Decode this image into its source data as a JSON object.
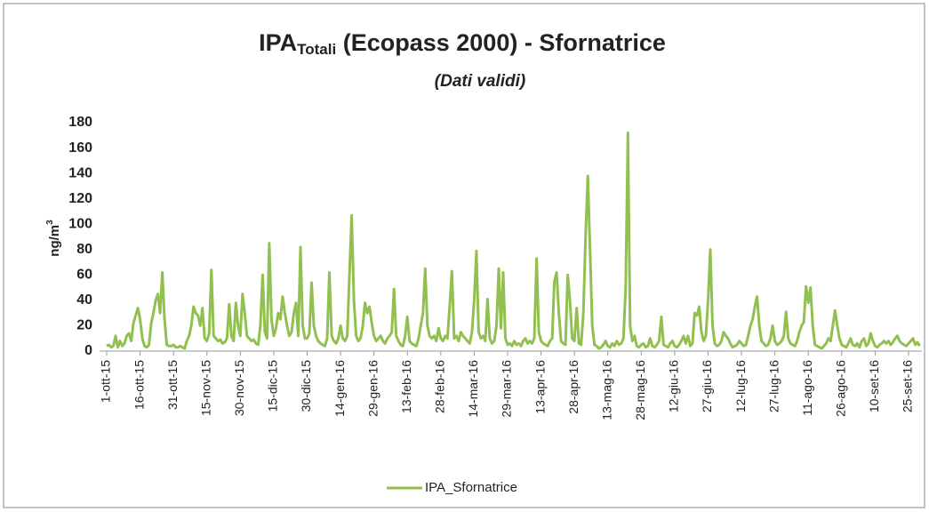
{
  "chart_data": {
    "type": "line",
    "title": "IPA",
    "title_sub": "Totali",
    "title_rest": " (Ecopass 2000) - Sfornatrice",
    "subtitle": "(Dati validi)",
    "y_label": "ng/m",
    "y_label_sup": "3",
    "ylim": [
      0,
      180
    ],
    "yticks": [
      0,
      20,
      40,
      60,
      80,
      100,
      120,
      140,
      160,
      180
    ],
    "grid": false,
    "legend": "bottom",
    "categories": [
      "1-ott-15",
      null,
      null,
      null,
      null,
      null,
      null,
      null,
      null,
      null,
      null,
      null,
      null,
      null,
      null,
      "16-ott-15",
      null,
      null,
      null,
      null,
      null,
      null,
      null,
      null,
      null,
      null,
      null,
      null,
      null,
      null,
      "31-ott-15",
      null,
      null,
      null,
      null,
      null,
      null,
      null,
      null,
      null,
      null,
      null,
      null,
      null,
      null,
      "15-nov-15",
      null,
      null,
      null,
      null,
      null,
      null,
      null,
      null,
      null,
      null,
      null,
      null,
      null,
      null,
      "30-nov-15",
      null,
      null,
      null,
      null,
      null,
      null,
      null,
      null,
      null,
      null,
      null,
      null,
      null,
      null,
      "15-dic-15",
      null,
      null,
      null,
      null,
      null,
      null,
      null,
      null,
      null,
      null,
      null,
      null,
      null,
      null,
      "30-dic-15",
      null,
      null,
      null,
      null,
      null,
      null,
      null,
      null,
      null,
      null,
      null,
      null,
      null,
      null,
      "14-gen-16",
      null,
      null,
      null,
      null,
      null,
      null,
      null,
      null,
      null,
      null,
      null,
      null,
      null,
      null,
      "29-gen-16",
      null,
      null,
      null,
      null,
      null,
      null,
      null,
      null,
      null,
      null,
      null,
      null,
      null,
      null,
      "13-feb-16",
      null,
      null,
      null,
      null,
      null,
      null,
      null,
      null,
      null,
      null,
      null,
      null,
      null,
      null,
      "28-feb-16",
      null,
      null,
      null,
      null,
      null,
      null,
      null,
      null,
      null,
      null,
      null,
      null,
      null,
      null,
      "14-mar-16",
      null,
      null,
      null,
      null,
      null,
      null,
      null,
      null,
      null,
      null,
      null,
      null,
      null,
      null,
      "29-mar-16",
      null,
      null,
      null,
      null,
      null,
      null,
      null,
      null,
      null,
      null,
      null,
      null,
      null,
      null,
      "13-apr-16",
      null,
      null,
      null,
      null,
      null,
      null,
      null,
      null,
      null,
      null,
      null,
      null,
      null,
      null,
      "28-apr-16",
      null,
      null,
      null,
      null,
      null,
      null,
      null,
      null,
      null,
      null,
      null,
      null,
      null,
      null,
      "13-mag-16",
      null,
      null,
      null,
      null,
      null,
      null,
      null,
      null,
      null,
      null,
      null,
      null,
      null,
      null,
      "28-mag-16",
      null,
      null,
      null,
      null,
      null,
      null,
      null,
      null,
      null,
      null,
      null,
      null,
      null,
      null,
      "12-giu-16",
      null,
      null,
      null,
      null,
      null,
      null,
      null,
      null,
      null,
      null,
      null,
      null,
      null,
      null,
      "27-giu-16",
      null,
      null,
      null,
      null,
      null,
      null,
      null,
      null,
      null,
      null,
      null,
      null,
      null,
      null,
      "12-lug-16",
      null,
      null,
      null,
      null,
      null,
      null,
      null,
      null,
      null,
      null,
      null,
      null,
      null,
      null,
      "27-lug-16",
      null,
      null,
      null,
      null,
      null,
      null,
      null,
      null,
      null,
      null,
      null,
      null,
      null,
      null,
      "11-ago-16",
      null,
      null,
      null,
      null,
      null,
      null,
      null,
      null,
      null,
      null,
      null,
      null,
      null,
      null,
      "26-ago-16",
      null,
      null,
      null,
      null,
      null,
      null,
      null,
      null,
      null,
      null,
      null,
      null,
      null,
      null,
      "10-set-16",
      null,
      null,
      null,
      null,
      null,
      null,
      null,
      null,
      null,
      null,
      null,
      null,
      null,
      null,
      "25-set-16",
      null,
      null,
      null,
      null,
      null
    ],
    "series": [
      {
        "name": "IPA_Sfornatrice",
        "color": "#92c050",
        "values": [
          4,
          5,
          3,
          4,
          12,
          3,
          8,
          4,
          6,
          12,
          14,
          8,
          22,
          28,
          34,
          25,
          10,
          4,
          3,
          5,
          22,
          30,
          40,
          45,
          30,
          62,
          25,
          5,
          4,
          4,
          5,
          3,
          3,
          4,
          3,
          2,
          8,
          12,
          20,
          35,
          30,
          28,
          20,
          34,
          10,
          8,
          14,
          64,
          12,
          10,
          8,
          9,
          6,
          7,
          10,
          37,
          12,
          8,
          38,
          20,
          12,
          45,
          30,
          12,
          10,
          8,
          9,
          6,
          5,
          20,
          60,
          15,
          10,
          85,
          25,
          12,
          18,
          30,
          25,
          43,
          30,
          20,
          12,
          15,
          30,
          38,
          12,
          82,
          20,
          10,
          10,
          14,
          54,
          20,
          12,
          8,
          6,
          5,
          4,
          10,
          62,
          12,
          8,
          6,
          10,
          20,
          10,
          8,
          12,
          60,
          107,
          40,
          12,
          8,
          10,
          20,
          38,
          30,
          35,
          22,
          12,
          8,
          10,
          12,
          8,
          6,
          10,
          12,
          15,
          49,
          12,
          8,
          5,
          4,
          12,
          27,
          8,
          6,
          5,
          4,
          10,
          20,
          30,
          65,
          20,
          12,
          10,
          12,
          8,
          18,
          10,
          8,
          12,
          10,
          35,
          63,
          10,
          12,
          8,
          15,
          12,
          10,
          8,
          6,
          15,
          40,
          79,
          15,
          10,
          12,
          8,
          41,
          10,
          6,
          8,
          20,
          65,
          18,
          62,
          10,
          5,
          6,
          4,
          8,
          5,
          6,
          4,
          8,
          10,
          6,
          8,
          6,
          10,
          73,
          15,
          8,
          6,
          5,
          4,
          8,
          10,
          55,
          62,
          30,
          8,
          6,
          5,
          60,
          40,
          10,
          8,
          34,
          6,
          5,
          30,
          90,
          138,
          80,
          20,
          5,
          4,
          2,
          3,
          5,
          8,
          4,
          3,
          6,
          4,
          8,
          5,
          6,
          10,
          50,
          172,
          20,
          8,
          12,
          4,
          3,
          5,
          6,
          3,
          4,
          10,
          4,
          3,
          5,
          8,
          27,
          5,
          4,
          3,
          6,
          8,
          4,
          3,
          5,
          8,
          12,
          6,
          12,
          4,
          6,
          30,
          28,
          35,
          15,
          8,
          12,
          40,
          80,
          20,
          6,
          4,
          5,
          8,
          15,
          12,
          10,
          6,
          3,
          4,
          5,
          8,
          6,
          4,
          5,
          12,
          20,
          25,
          35,
          43,
          20,
          8,
          6,
          4,
          5,
          10,
          20,
          8,
          5,
          6,
          8,
          12,
          31,
          10,
          6,
          5,
          4,
          8,
          15,
          20,
          23,
          51,
          38,
          50,
          20,
          5,
          4,
          3,
          2,
          4,
          6,
          10,
          8,
          20,
          32,
          20,
          10,
          5,
          4,
          3,
          6,
          10,
          5,
          4,
          6,
          3,
          8,
          10,
          4,
          6,
          14,
          8,
          4,
          3,
          5,
          6,
          8,
          6,
          8,
          5,
          7,
          10,
          12,
          8,
          6,
          5,
          4,
          6,
          8,
          10,
          5,
          7,
          4
        ]
      }
    ]
  }
}
